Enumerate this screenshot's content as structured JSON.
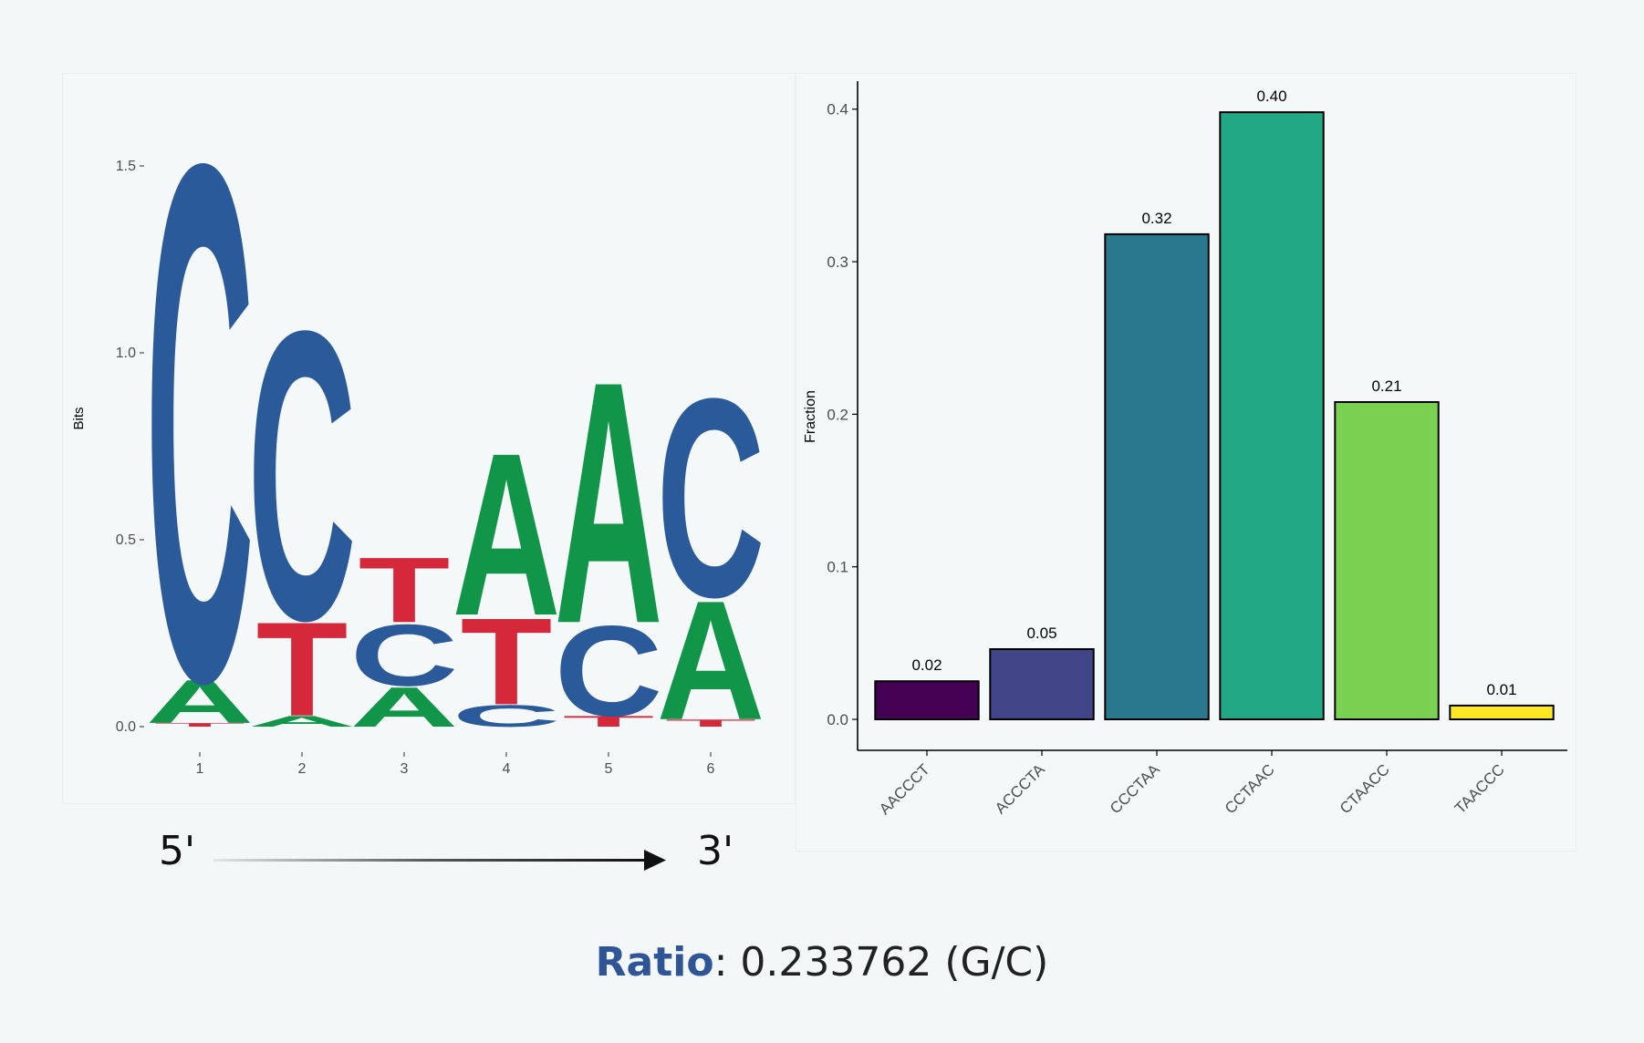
{
  "ratio": {
    "label": "Ratio",
    "sep": ": ",
    "value": "0.233762 (G/C)"
  },
  "direction": {
    "left": "5'",
    "right": "3'"
  },
  "colors": {
    "A": "#119548",
    "C": "#2b5a9a",
    "T": "#d6283b",
    "G": "#f5a623",
    "ratio_label": "#2f5597"
  },
  "chart_data": [
    {
      "type": "sequence-logo",
      "ylabel": "Bits",
      "ylim": [
        0,
        1.6
      ],
      "yticks": [
        "0.0",
        "0.5",
        "1.0",
        "1.5"
      ],
      "yticks_values": [
        0,
        0.5,
        1.0,
        1.5
      ],
      "positions": [
        "1",
        "2",
        "3",
        "4",
        "5",
        "6"
      ],
      "stacks": [
        [
          {
            "letter": "T",
            "bits": 0.01
          },
          {
            "letter": "A",
            "bits": 0.12
          },
          {
            "letter": "C",
            "bits": 1.43
          }
        ],
        [
          {
            "letter": "A",
            "bits": 0.03
          },
          {
            "letter": "T",
            "bits": 0.26
          },
          {
            "letter": "C",
            "bits": 0.8
          }
        ],
        [
          {
            "letter": "A",
            "bits": 0.11
          },
          {
            "letter": "C",
            "bits": 0.17
          },
          {
            "letter": "T",
            "bits": 0.18
          }
        ],
        [
          {
            "letter": "C",
            "bits": 0.06
          },
          {
            "letter": "T",
            "bits": 0.24
          },
          {
            "letter": "A",
            "bits": 0.45
          }
        ],
        [
          {
            "letter": "T",
            "bits": 0.03
          },
          {
            "letter": "C",
            "bits": 0.25
          },
          {
            "letter": "A",
            "bits": 0.67
          }
        ],
        [
          {
            "letter": "T",
            "bits": 0.02
          },
          {
            "letter": "A",
            "bits": 0.33
          },
          {
            "letter": "C",
            "bits": 0.55
          }
        ]
      ]
    },
    {
      "type": "bar",
      "ylabel": "Fraction",
      "ylim": [
        0,
        0.41
      ],
      "yticks": [
        "0.0",
        "0.1",
        "0.2",
        "0.3",
        "0.4"
      ],
      "yticks_values": [
        0,
        0.1,
        0.2,
        0.3,
        0.4
      ],
      "categories": [
        "AACCCT",
        "ACCCTA",
        "CCCTAA",
        "CCTAAC",
        "CTAACC",
        "TAACCC"
      ],
      "values": [
        0.025,
        0.046,
        0.318,
        0.398,
        0.208,
        0.009
      ],
      "data_labels": [
        "0.02",
        "0.05",
        "0.32",
        "0.40",
        "0.21",
        "0.01"
      ],
      "colors": [
        "#440154",
        "#414487",
        "#2a788e",
        "#22a884",
        "#7ad151",
        "#fde725"
      ]
    }
  ]
}
